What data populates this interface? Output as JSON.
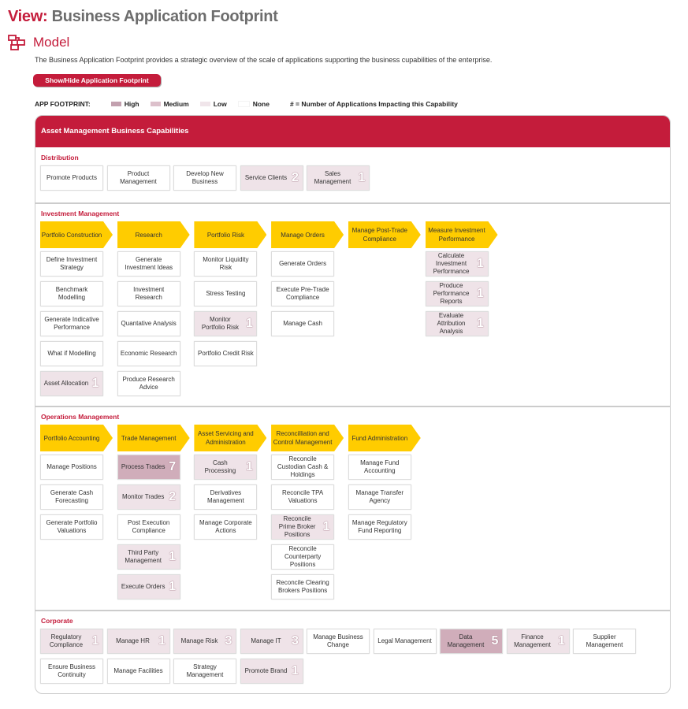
{
  "header": {
    "view_label": "View:",
    "title": "Business Application Footprint",
    "model": "Model",
    "description": "The Business Application Footprint provides a strategic overview of the scale of applications supporting the business cupabilities of the enterprise.",
    "toggle_button": "Show/Hide Application Footprint"
  },
  "legend": {
    "label": "APP FOOTPRINT:",
    "items": [
      {
        "label": "High",
        "color": "#c2a0ae"
      },
      {
        "label": "Medium",
        "color": "#dcc0cb"
      },
      {
        "label": "Low",
        "color": "#f0e5ea"
      },
      {
        "label": "None",
        "color": "#ffffff"
      }
    ],
    "note": "# = Number of Applications Impacting this Capability"
  },
  "colors": {
    "brand": "#c41c3b",
    "chevron": "#ffcc00",
    "high": "#d0adba",
    "low": "#efe3e8"
  },
  "panel": {
    "title": "Asset Management Business Capabilities",
    "sections": [
      {
        "title": "Distribution",
        "type": "flat",
        "items": [
          {
            "label": "Promote Products",
            "level": "none"
          },
          {
            "label": "Product Management",
            "level": "none"
          },
          {
            "label": "Develop New Business",
            "level": "none"
          },
          {
            "label": "Service Clients",
            "level": "low",
            "count": "2"
          },
          {
            "label": "Sales Management",
            "level": "low",
            "count": "1"
          }
        ]
      },
      {
        "title": "Investment Management",
        "type": "columns",
        "columns": [
          {
            "label": "Portfolio Construction",
            "items": [
              {
                "label": "Define Investment Strategy",
                "level": "none"
              },
              {
                "label": "Benchmark Modelling",
                "level": "none"
              },
              {
                "label": "Generate Indicative Performance",
                "level": "none"
              },
              {
                "label": "What if Modelling",
                "level": "none"
              },
              {
                "label": "Asset Allocation",
                "level": "low",
                "count": "1"
              }
            ]
          },
          {
            "label": "Research",
            "items": [
              {
                "label": "Generate Investment Ideas",
                "level": "none"
              },
              {
                "label": "Investment Research",
                "level": "none"
              },
              {
                "label": "Quantative Analysis",
                "level": "none"
              },
              {
                "label": "Economic Research",
                "level": "none"
              },
              {
                "label": "Produce Research Advice",
                "level": "none"
              }
            ]
          },
          {
            "label": "Portfolio Risk",
            "items": [
              {
                "label": "Monitor Liquidity Risk",
                "level": "none"
              },
              {
                "label": "Stress Testing",
                "level": "none"
              },
              {
                "label": "Monitor Portfolio Risk",
                "level": "low",
                "count": "1"
              },
              {
                "label": "Portfolio Credit Risk",
                "level": "none"
              }
            ]
          },
          {
            "label": "Manage Orders",
            "items": [
              {
                "label": "Generate Orders",
                "level": "none"
              },
              {
                "label": "Execute Pre-Trade Compliance",
                "level": "none"
              },
              {
                "label": "Manage Cash",
                "level": "none"
              }
            ]
          },
          {
            "label": "Manage Post-Trade Compliance",
            "items": []
          },
          {
            "label": "Measure Investment Performance",
            "items": [
              {
                "label": "Calculate Investment Performance",
                "level": "low",
                "count": "1"
              },
              {
                "label": "Produce Performance Reports",
                "level": "low",
                "count": "1"
              },
              {
                "label": "Evaluate Attribution Analysis",
                "level": "low",
                "count": "1"
              }
            ]
          }
        ]
      },
      {
        "title": "Operations Management",
        "type": "columns",
        "columns": [
          {
            "label": "Portfolio Accounting",
            "items": [
              {
                "label": "Manage Positions",
                "level": "none"
              },
              {
                "label": "Generate Cash Forecasting",
                "level": "none"
              },
              {
                "label": "Generate Portfolio Valuations",
                "level": "none"
              }
            ]
          },
          {
            "label": "Trade Management",
            "items": [
              {
                "label": "Process Trades",
                "level": "high",
                "count": "7"
              },
              {
                "label": "Monitor Trades",
                "level": "low",
                "count": "2"
              },
              {
                "label": "Post Execution Compliance",
                "level": "none"
              },
              {
                "label": "Third Party Management",
                "level": "low",
                "count": "1"
              },
              {
                "label": "Execute Orders",
                "level": "low",
                "count": "1"
              }
            ]
          },
          {
            "label": "Asset Servicing and Administration",
            "items": [
              {
                "label": "Cash Processing",
                "level": "low",
                "count": "1"
              },
              {
                "label": "Derivatives Management",
                "level": "none"
              },
              {
                "label": "Manage Corporate Actions",
                "level": "none"
              }
            ]
          },
          {
            "label": "Reconcilliation and Control Management",
            "items": [
              {
                "label": "Reconcile Custodian Cash & Holdings",
                "level": "none"
              },
              {
                "label": "Reconcile TPA Valuations",
                "level": "none"
              },
              {
                "label": "Reconcile Prime Broker Positions",
                "level": "low",
                "count": "1"
              },
              {
                "label": "Reconcile Counterparty Positions",
                "level": "none"
              },
              {
                "label": "Reconcile Clearing Brokers Positions",
                "level": "none"
              }
            ]
          },
          {
            "label": "Fund Administration",
            "items": [
              {
                "label": "Manage Fund Accounting",
                "level": "none"
              },
              {
                "label": "Manage Transfer Agency",
                "level": "none"
              },
              {
                "label": "Manage Regulatory Fund Reporting",
                "level": "none"
              }
            ]
          }
        ]
      },
      {
        "title": "Corporate",
        "type": "flat",
        "items": [
          {
            "label": "Regulatory Compliance",
            "level": "low",
            "count": "1"
          },
          {
            "label": "Manage HR",
            "level": "low",
            "count": "1"
          },
          {
            "label": "Manage Risk",
            "level": "low",
            "count": "3"
          },
          {
            "label": "Manage IT",
            "level": "low",
            "count": "3"
          },
          {
            "label": "Manage Business Change",
            "level": "none"
          },
          {
            "label": "Legal Management",
            "level": "none"
          },
          {
            "label": "Data Management",
            "level": "high",
            "count": "5"
          },
          {
            "label": "Finance Management",
            "level": "low",
            "count": "1"
          },
          {
            "label": "Supplier Management",
            "level": "none"
          },
          {
            "label": "Ensure Business Continuity",
            "level": "none"
          },
          {
            "label": "Manage Facilities",
            "level": "none"
          },
          {
            "label": "Strategy Management",
            "level": "none"
          },
          {
            "label": "Promote Brand",
            "level": "low",
            "count": "1"
          }
        ]
      }
    ]
  }
}
